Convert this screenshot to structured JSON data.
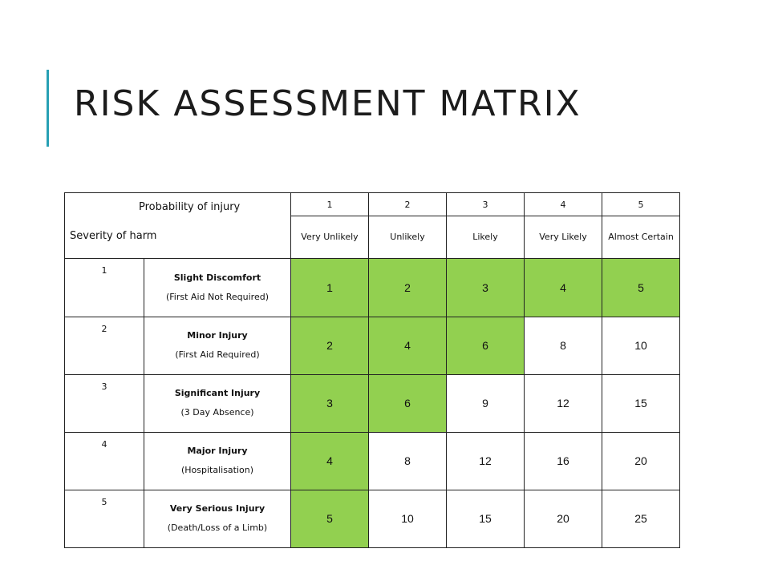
{
  "slide": {
    "title": "RISK ASSESSMENT MATRIX",
    "accent_color": "#27a0b4"
  },
  "matrix": {
    "probability_label": "Probability of injury",
    "severity_label": "Severity of harm",
    "highlight_color": "#92d050",
    "probability": [
      {
        "num": "1",
        "label": "Very Unlikely"
      },
      {
        "num": "2",
        "label": "Unlikely"
      },
      {
        "num": "3",
        "label": "Likely"
      },
      {
        "num": "4",
        "label": "Very Likely"
      },
      {
        "num": "5",
        "label": "Almost Certain"
      }
    ],
    "rows": [
      {
        "num": "1",
        "name": "Slight Discomfort",
        "note": "(First Aid Not Required)",
        "scores": [
          {
            "v": "1",
            "g": true
          },
          {
            "v": "2",
            "g": true
          },
          {
            "v": "3",
            "g": true
          },
          {
            "v": "4",
            "g": true
          },
          {
            "v": "5",
            "g": true
          }
        ]
      },
      {
        "num": "2",
        "name": "Minor Injury",
        "note": "(First Aid Required)",
        "scores": [
          {
            "v": "2",
            "g": true
          },
          {
            "v": "4",
            "g": true
          },
          {
            "v": "6",
            "g": true
          },
          {
            "v": "8",
            "g": false
          },
          {
            "v": "10",
            "g": false
          }
        ]
      },
      {
        "num": "3",
        "name": "Significant Injury",
        "note": "(3 Day Absence)",
        "scores": [
          {
            "v": "3",
            "g": true
          },
          {
            "v": "6",
            "g": true
          },
          {
            "v": "9",
            "g": false
          },
          {
            "v": "12",
            "g": false
          },
          {
            "v": "15",
            "g": false
          }
        ]
      },
      {
        "num": "4",
        "name": "Major Injury",
        "note": "(Hospitalisation)",
        "scores": [
          {
            "v": "4",
            "g": true
          },
          {
            "v": "8",
            "g": false
          },
          {
            "v": "12",
            "g": false
          },
          {
            "v": "16",
            "g": false
          },
          {
            "v": "20",
            "g": false
          }
        ]
      },
      {
        "num": "5",
        "name": "Very Serious Injury",
        "note": "(Death/Loss of a Limb)",
        "scores": [
          {
            "v": "5",
            "g": true
          },
          {
            "v": "10",
            "g": false
          },
          {
            "v": "15",
            "g": false
          },
          {
            "v": "20",
            "g": false
          },
          {
            "v": "25",
            "g": false
          }
        ]
      }
    ]
  }
}
